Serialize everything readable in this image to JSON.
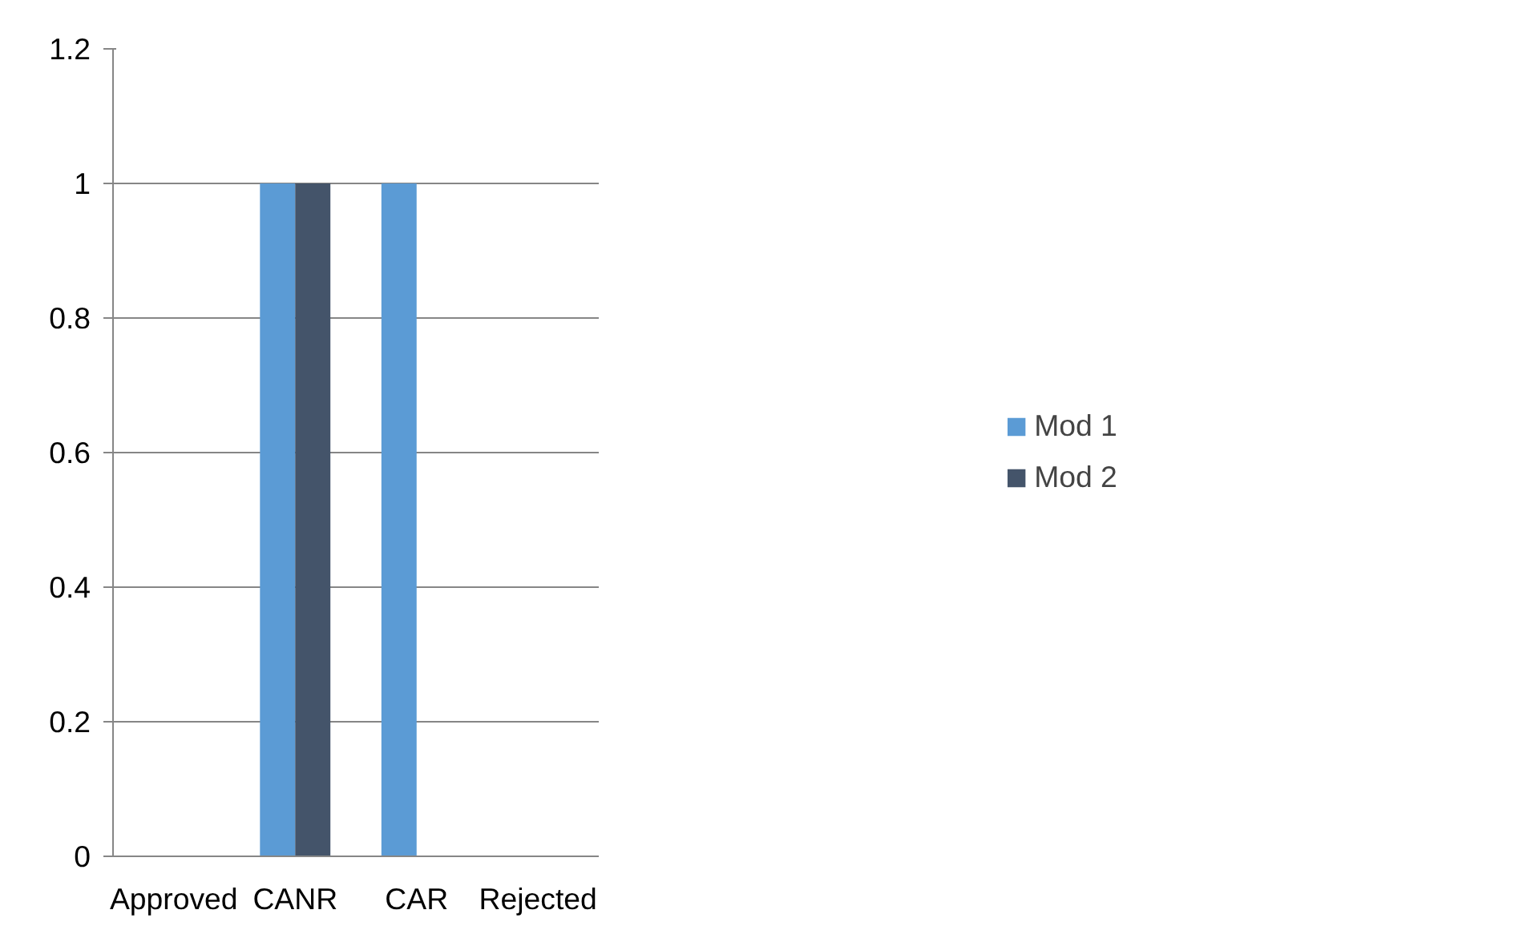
{
  "chart_data": {
    "type": "bar",
    "categories": [
      "Approved",
      "CANR",
      "CAR",
      "Rejected"
    ],
    "series": [
      {
        "name": "Mod 1",
        "color": "#5b9bd5",
        "values": [
          0,
          1,
          1,
          0
        ]
      },
      {
        "name": "Mod 2",
        "color": "#44546a",
        "values": [
          0,
          1,
          0,
          0
        ]
      }
    ],
    "ylim": [
      0,
      1.2
    ],
    "yticks": [
      0,
      0.2,
      0.4,
      0.6,
      0.8,
      1,
      1.2
    ],
    "grid": "y",
    "legend": "right"
  }
}
